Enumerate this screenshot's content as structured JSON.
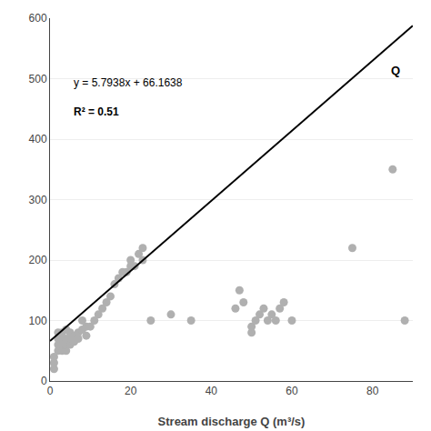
{
  "chart_data": {
    "type": "scatter",
    "xlabel": "Stream discharge Q (m³/s)",
    "annotations": [
      "y = 5.7938x + 66.1638",
      "R² = 0.51",
      "Q"
    ],
    "series": [
      {
        "type": "scatter",
        "color": "#b0b0b0",
        "x": [
          1,
          1,
          1,
          2,
          2,
          2,
          2,
          3,
          3,
          3,
          3,
          4,
          4,
          4,
          4,
          5,
          5,
          5,
          6,
          6,
          7,
          7,
          8,
          8,
          9,
          9,
          10,
          11,
          12,
          13,
          14,
          15,
          16,
          17,
          18,
          19,
          20,
          20,
          21,
          22,
          23,
          23,
          25,
          30,
          35,
          46,
          47,
          48,
          50,
          50,
          51,
          52,
          53,
          54,
          55,
          56,
          57,
          58,
          60,
          75,
          85,
          88
        ],
        "values": [
          20,
          30,
          40,
          50,
          60,
          70,
          80,
          50,
          60,
          70,
          80,
          50,
          60,
          70,
          85,
          60,
          70,
          80,
          65,
          75,
          70,
          80,
          85,
          100,
          75,
          90,
          90,
          100,
          110,
          120,
          130,
          140,
          160,
          170,
          180,
          180,
          190,
          200,
          190,
          210,
          200,
          220,
          100,
          110,
          100,
          120,
          150,
          130,
          80,
          90,
          100,
          110,
          120,
          100,
          110,
          100,
          120,
          130,
          100,
          220,
          350,
          100
        ]
      },
      {
        "type": "line",
        "color": "#000000",
        "x": [
          0,
          90
        ],
        "values": [
          66.1638,
          587.6058
        ]
      }
    ],
    "xlim": [
      0,
      90
    ],
    "ylim": [
      0,
      600
    ],
    "xticks": [
      0,
      20,
      40,
      60,
      80
    ],
    "yticks": [
      0,
      100,
      200,
      300,
      400,
      500,
      600
    ],
    "grid": "y"
  }
}
